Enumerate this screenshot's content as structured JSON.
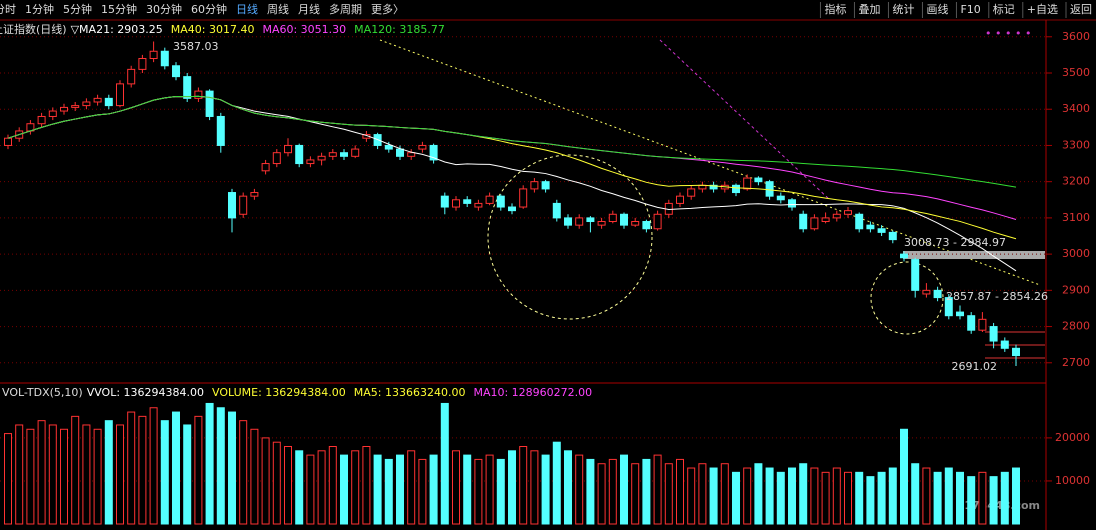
{
  "menu": [
    "分时",
    "1分钟",
    "5分钟",
    "15分钟",
    "30分钟",
    "60分钟",
    "日线",
    "周线",
    "月线",
    "多周期",
    "更多〉"
  ],
  "buttons": [
    "指标",
    "叠加",
    "统计",
    "画线",
    "F10",
    "标记",
    "+自选",
    "返回"
  ],
  "watermark": "178448.com",
  "chart_data": [
    {
      "type": "candlestick",
      "title": "上证指数(日线)",
      "legend_items": [
        {
          "name": "▽MA21: 2903.25",
          "color": "#ffffff"
        },
        {
          "name": "MA40: 3017.40",
          "color": "#ffff33"
        },
        {
          "name": "MA60: 3051.30",
          "color": "#ff44ff"
        },
        {
          "name": "MA120: 3185.77",
          "color": "#33dd33"
        }
      ],
      "annotations": [
        "3587.03",
        "3008.73 - 2984.97",
        "2857.87 - 2854.26",
        "2691.02"
      ],
      "ylim": [
        2658,
        3627
      ],
      "yticks": [
        2700,
        2800,
        2900,
        3000,
        3100,
        3200,
        3300,
        3400,
        3500,
        3600
      ],
      "up_color": "#ff3232",
      "down_color": "#54ffff",
      "series": [
        {
          "name": "上证指数(日线)",
          "ohlc": [
            [
              3300,
              3330,
              3290,
              3320
            ],
            [
              3320,
              3350,
              3310,
              3340
            ],
            [
              3340,
              3370,
              3330,
              3360
            ],
            [
              3360,
              3390,
              3350,
              3380
            ],
            [
              3380,
              3405,
              3370,
              3395
            ],
            [
              3395,
              3415,
              3385,
              3405
            ],
            [
              3405,
              3420,
              3395,
              3410
            ],
            [
              3410,
              3430,
              3400,
              3420
            ],
            [
              3420,
              3440,
              3410,
              3430
            ],
            [
              3430,
              3440,
              3400,
              3410
            ],
            [
              3410,
              3480,
              3405,
              3470
            ],
            [
              3470,
              3520,
              3460,
              3510
            ],
            [
              3510,
              3550,
              3500,
              3540
            ],
            [
              3540,
              3587,
              3530,
              3560
            ],
            [
              3560,
              3570,
              3510,
              3520
            ],
            [
              3520,
              3530,
              3480,
              3490
            ],
            [
              3490,
              3500,
              3420,
              3430
            ],
            [
              3430,
              3460,
              3420,
              3450
            ],
            [
              3450,
              3455,
              3370,
              3380
            ],
            [
              3380,
              3390,
              3280,
              3300
            ],
            [
              3170,
              3180,
              3060,
              3100
            ],
            [
              3110,
              3170,
              3100,
              3160
            ],
            [
              3160,
              3180,
              3150,
              3170
            ],
            [
              3230,
              3260,
              3220,
              3250
            ],
            [
              3250,
              3290,
              3240,
              3280
            ],
            [
              3280,
              3320,
              3270,
              3300
            ],
            [
              3300,
              3305,
              3240,
              3250
            ],
            [
              3250,
              3270,
              3240,
              3260
            ],
            [
              3260,
              3280,
              3245,
              3270
            ],
            [
              3270,
              3290,
              3260,
              3280
            ],
            [
              3280,
              3290,
              3260,
              3270
            ],
            [
              3270,
              3300,
              3265,
              3290
            ],
            [
              3320,
              3340,
              3310,
              3330
            ],
            [
              3330,
              3335,
              3290,
              3300
            ],
            [
              3300,
              3310,
              3280,
              3290
            ],
            [
              3290,
              3300,
              3260,
              3270
            ],
            [
              3270,
              3290,
              3260,
              3280
            ],
            [
              3290,
              3310,
              3280,
              3300
            ],
            [
              3300,
              3305,
              3250,
              3260
            ],
            [
              3160,
              3170,
              3110,
              3130
            ],
            [
              3130,
              3160,
              3120,
              3150
            ],
            [
              3150,
              3160,
              3130,
              3140
            ],
            [
              3130,
              3150,
              3120,
              3140
            ],
            [
              3140,
              3170,
              3135,
              3160
            ],
            [
              3160,
              3165,
              3120,
              3130
            ],
            [
              3130,
              3140,
              3110,
              3120
            ],
            [
              3130,
              3190,
              3125,
              3180
            ],
            [
              3180,
              3210,
              3170,
              3200
            ],
            [
              3200,
              3205,
              3170,
              3180
            ],
            [
              3140,
              3150,
              3090,
              3100
            ],
            [
              3100,
              3110,
              3070,
              3080
            ],
            [
              3080,
              3110,
              3070,
              3100
            ],
            [
              3100,
              3105,
              3060,
              3090
            ],
            [
              3080,
              3100,
              3070,
              3090
            ],
            [
              3090,
              3120,
              3085,
              3110
            ],
            [
              3110,
              3115,
              3070,
              3080
            ],
            [
              3080,
              3100,
              3075,
              3090
            ],
            [
              3090,
              3095,
              3060,
              3070
            ],
            [
              3070,
              3120,
              3065,
              3110
            ],
            [
              3110,
              3150,
              3100,
              3140
            ],
            [
              3140,
              3170,
              3130,
              3160
            ],
            [
              3160,
              3190,
              3150,
              3180
            ],
            [
              3180,
              3200,
              3170,
              3190
            ],
            [
              3190,
              3200,
              3170,
              3180
            ],
            [
              3180,
              3200,
              3170,
              3190
            ],
            [
              3190,
              3195,
              3160,
              3170
            ],
            [
              3180,
              3220,
              3175,
              3210
            ],
            [
              3210,
              3215,
              3190,
              3200
            ],
            [
              3200,
              3205,
              3150,
              3160
            ],
            [
              3160,
              3170,
              3140,
              3150
            ],
            [
              3150,
              3155,
              3120,
              3130
            ],
            [
              3110,
              3120,
              3060,
              3070
            ],
            [
              3070,
              3110,
              3065,
              3100
            ],
            [
              3090,
              3115,
              3085,
              3100
            ],
            [
              3100,
              3120,
              3090,
              3110
            ],
            [
              3110,
              3130,
              3100,
              3120
            ],
            [
              3110,
              3115,
              3060,
              3070
            ],
            [
              3080,
              3090,
              3060,
              3070
            ],
            [
              3070,
              3080,
              3050,
              3060
            ],
            [
              3060,
              3065,
              3030,
              3040
            ],
            [
              3000,
              3008,
              2980,
              2990
            ],
            [
              2985,
              2990,
              2880,
              2900
            ],
            [
              2890,
              2920,
              2880,
              2900
            ],
            [
              2900,
              2910,
              2870,
              2880
            ],
            [
              2880,
              2890,
              2820,
              2830
            ],
            [
              2840,
              2858,
              2820,
              2830
            ],
            [
              2830,
              2840,
              2780,
              2790
            ],
            [
              2790,
              2840,
              2785,
              2820
            ],
            [
              2800,
              2810,
              2740,
              2760
            ],
            [
              2760,
              2770,
              2730,
              2740
            ],
            [
              2740,
              2750,
              2691,
              2720
            ]
          ]
        }
      ]
    },
    {
      "type": "bar",
      "title": "VOL-TDX(5,10)",
      "legend_items": [
        {
          "name": "VVOL: 136294384.00",
          "color": "#ffffff"
        },
        {
          "name": "VOLUME: 136294384.00",
          "color": "#ffff33"
        },
        {
          "name": "MA5: 133663240.00",
          "color": "#ffff33"
        },
        {
          "name": "MA10: 128960272.00",
          "color": "#ff44ff"
        }
      ],
      "ylim": [
        0,
        28800
      ],
      "yticks": [
        10000,
        20000
      ],
      "values": [
        21000,
        23000,
        22000,
        24000,
        23000,
        22000,
        25000,
        23000,
        22000,
        24000,
        23000,
        26000,
        25000,
        27000,
        24000,
        26000,
        23000,
        25000,
        28000,
        27000,
        26000,
        24000,
        22000,
        20000,
        19000,
        18000,
        17000,
        16000,
        17000,
        18000,
        16000,
        17000,
        18000,
        16000,
        15000,
        16000,
        17000,
        15000,
        16000,
        28000,
        17000,
        16000,
        15000,
        16000,
        15000,
        17000,
        18000,
        17000,
        16000,
        19000,
        17000,
        16000,
        15000,
        14000,
        15000,
        16000,
        14000,
        15000,
        16000,
        14000,
        15000,
        13000,
        14000,
        13000,
        14000,
        12000,
        13000,
        14000,
        13000,
        12000,
        13000,
        14000,
        13000,
        12000,
        13000,
        12000,
        12000,
        11000,
        12000,
        13000,
        22000,
        14000,
        13000,
        12000,
        13000,
        12000,
        11000,
        12000,
        11000,
        12000,
        13000
      ]
    }
  ]
}
